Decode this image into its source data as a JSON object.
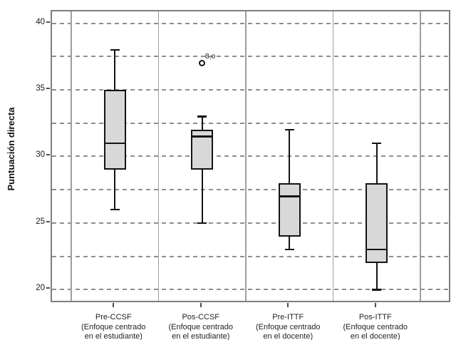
{
  "y_axis": {
    "title": "Puntuación directa",
    "tick_labels": [
      "40",
      "35",
      "30",
      "25",
      "20"
    ]
  },
  "x_axis": {
    "category_labels": [
      [
        "Pre-CCSF",
        "(Enfoque centrado",
        "en el estudiante)"
      ],
      [
        "Pos-CCSF",
        "(Enfoque centrado",
        "en el estudiante)"
      ],
      [
        "Pre-ITTF",
        "(Enfoque centrado",
        "en el docente)"
      ],
      [
        "Pos-ITTF",
        "(Enfoque centrado",
        "en el docente)"
      ]
    ]
  },
  "chart_data": {
    "type": "boxplot",
    "title": "",
    "xlabel": "",
    "ylabel": "Puntuación directa",
    "ylim": [
      18.9,
      40.9
    ],
    "y_ticks": [
      20,
      25,
      30,
      35,
      40
    ],
    "grid": {
      "style": "horizontal dashed",
      "step": 2.5,
      "from": 20,
      "to": 40
    },
    "legend": "none",
    "panel_separators": true,
    "categories": [
      "Pre-CCSF (Enfoque centrado en el estudiante)",
      "Pos-CCSF (Enfoque centrado en el estudiante)",
      "Pre-ITTF (Enfoque centrado en el docente)",
      "Pos-ITTF (Enfoque centrado en el docente)"
    ],
    "series": [
      {
        "category": "Pre-CCSF (Enfoque centrado en el estudiante)",
        "whisker_low": 26,
        "q1": 29,
        "median": 31,
        "q3": 35,
        "whisker_high": 38,
        "outliers": []
      },
      {
        "category": "Pos-CCSF (Enfoque centrado en el estudiante)",
        "whisker_low": 25,
        "q1": 29,
        "median": 31.5,
        "q3": 32,
        "whisker_high": 33,
        "outliers": [
          {
            "value": 37,
            "label": "8,o"
          }
        ]
      },
      {
        "category": "Pre-ITTF (Enfoque centrado en el docente)",
        "whisker_low": 23,
        "q1": 24,
        "median": 27,
        "q3": 28,
        "whisker_high": 32,
        "outliers": []
      },
      {
        "category": "Pos-ITTF (Enfoque centrado en el docente)",
        "whisker_low": 20,
        "q1": 22,
        "median": 23,
        "q3": 28,
        "whisker_high": 31,
        "outliers": []
      }
    ]
  },
  "colors": {
    "box_fill": "#d8d8d8",
    "box_border": "#141414",
    "gridline": "#8f8f8f",
    "frame": "#7d7d7d",
    "separator": "#9e9e9e",
    "text": "#1a1a1a",
    "background": "#ffffff"
  }
}
